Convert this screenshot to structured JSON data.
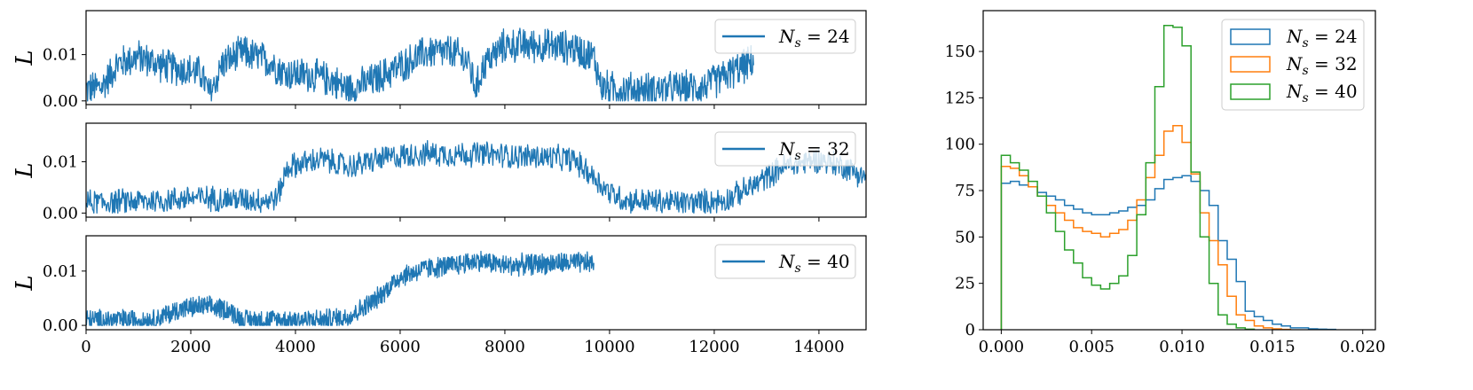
{
  "chart_data": [
    {
      "type": "line",
      "ylabel": "L",
      "xlim": [
        0,
        14900
      ],
      "ylim": [
        -0.0008,
        0.0195
      ],
      "yticks": [
        0.0,
        0.01
      ],
      "ytick_labels": [
        "0.00",
        "0.01"
      ],
      "grid": false,
      "legend_placement": "top-right",
      "series": [
        {
          "name": "N_s = 24",
          "color": "#1f77b4",
          "x_max": 12750,
          "noise_amp": 0.0042,
          "trend": [
            [
              0,
              0.0025
            ],
            [
              300,
              0.003
            ],
            [
              600,
              0.008
            ],
            [
              1000,
              0.0095
            ],
            [
              1500,
              0.0075
            ],
            [
              2000,
              0.0065
            ],
            [
              2200,
              0.006
            ],
            [
              2350,
              0.0015
            ],
            [
              2450,
              0.0035
            ],
            [
              2600,
              0.008
            ],
            [
              3000,
              0.0105
            ],
            [
              3500,
              0.0085
            ],
            [
              3800,
              0.006
            ],
            [
              4300,
              0.0055
            ],
            [
              4700,
              0.0045
            ],
            [
              5000,
              0.0025
            ],
            [
              5500,
              0.0045
            ],
            [
              6000,
              0.0075
            ],
            [
              6500,
              0.0105
            ],
            [
              7000,
              0.0105
            ],
            [
              7300,
              0.0085
            ],
            [
              7450,
              0.0025
            ],
            [
              7600,
              0.008
            ],
            [
              8000,
              0.012
            ],
            [
              8600,
              0.012
            ],
            [
              9300,
              0.0115
            ],
            [
              9700,
              0.0095
            ],
            [
              9850,
              0.003
            ],
            [
              10200,
              0.0025
            ],
            [
              11000,
              0.0025
            ],
            [
              11800,
              0.003
            ],
            [
              12300,
              0.006
            ],
            [
              12750,
              0.0085
            ]
          ]
        }
      ]
    },
    {
      "type": "line",
      "ylabel": "L",
      "xlim": [
        0,
        14900
      ],
      "ylim": [
        -0.0008,
        0.0175
      ],
      "yticks": [
        0.0,
        0.01
      ],
      "ytick_labels": [
        "0.00",
        "0.01"
      ],
      "grid": false,
      "legend_placement": "top-right",
      "series": [
        {
          "name": "N_s = 32",
          "color": "#1f77b4",
          "x_max": 14900,
          "noise_amp": 0.0028,
          "trend": [
            [
              0,
              0.002
            ],
            [
              1500,
              0.0025
            ],
            [
              2000,
              0.003
            ],
            [
              3500,
              0.0025
            ],
            [
              3650,
              0.003
            ],
            [
              3850,
              0.009
            ],
            [
              4500,
              0.0105
            ],
            [
              5000,
              0.009
            ],
            [
              5600,
              0.0105
            ],
            [
              6300,
              0.0115
            ],
            [
              7500,
              0.0115
            ],
            [
              8500,
              0.011
            ],
            [
              9300,
              0.0105
            ],
            [
              9700,
              0.007
            ],
            [
              10000,
              0.004
            ],
            [
              10300,
              0.0025
            ],
            [
              11500,
              0.002
            ],
            [
              12200,
              0.0025
            ],
            [
              12700,
              0.005
            ],
            [
              13300,
              0.009
            ],
            [
              14000,
              0.0105
            ],
            [
              14500,
              0.009
            ],
            [
              14900,
              0.007
            ]
          ]
        }
      ]
    },
    {
      "type": "line",
      "ylabel": "L",
      "xlim": [
        0,
        14900
      ],
      "ylim": [
        -0.0008,
        0.0165
      ],
      "yticks": [
        0.0,
        0.01
      ],
      "ytick_labels": [
        "0.00",
        "0.01"
      ],
      "grid": false,
      "legend_placement": "top-right",
      "series": [
        {
          "name": "N_s = 40",
          "color": "#1f77b4",
          "x_max": 9700,
          "noise_amp": 0.0022,
          "trend": [
            [
              0,
              0.001
            ],
            [
              1300,
              0.001
            ],
            [
              1800,
              0.003
            ],
            [
              2200,
              0.0035
            ],
            [
              2700,
              0.003
            ],
            [
              3000,
              0.001
            ],
            [
              4500,
              0.001
            ],
            [
              5000,
              0.0015
            ],
            [
              5500,
              0.0045
            ],
            [
              6000,
              0.009
            ],
            [
              6500,
              0.0105
            ],
            [
              7000,
              0.011
            ],
            [
              7500,
              0.012
            ],
            [
              8000,
              0.011
            ],
            [
              9000,
              0.0115
            ],
            [
              9700,
              0.0115
            ]
          ]
        }
      ]
    },
    {
      "type": "histogram",
      "xlim": [
        -0.001,
        0.0207
      ],
      "ylim": [
        0,
        172
      ],
      "xticks": [
        0.0,
        0.005,
        0.01,
        0.015,
        0.02
      ],
      "xtick_labels": [
        "0.000",
        "0.005",
        "0.010",
        "0.015",
        "0.020"
      ],
      "yticks": [
        0,
        25,
        50,
        75,
        100,
        125,
        150
      ],
      "ytick_labels": [
        "0",
        "25",
        "50",
        "75",
        "100",
        "125",
        "150"
      ],
      "bin_width": 0.0005,
      "bin_start": 0.0,
      "grid": false,
      "legend_placement": "top-right",
      "series": [
        {
          "name": "N_s = 24",
          "color": "#1f77b4",
          "counts": [
            79,
            80,
            78,
            77,
            74,
            72,
            70,
            67,
            65,
            63,
            62,
            62,
            63,
            64,
            66,
            67,
            70,
            76,
            81,
            82,
            83,
            80,
            75,
            67,
            48,
            38,
            26,
            10,
            7,
            5,
            3,
            2,
            1,
            1,
            0.5,
            0.3,
            0.2
          ]
        },
        {
          "name": "N_s = 32",
          "color": "#ff7f0e",
          "counts": [
            88,
            87,
            83,
            77,
            72,
            67,
            63,
            59,
            55,
            53,
            52,
            50,
            52,
            54,
            59,
            70,
            82,
            94,
            107,
            110,
            101,
            84,
            63,
            48,
            35,
            18,
            8,
            5,
            2,
            1,
            0.5,
            0.2
          ]
        },
        {
          "name": "N_s = 40",
          "color": "#2ca02c",
          "counts": [
            94,
            90,
            86,
            80,
            72,
            63,
            53,
            43,
            36,
            28,
            24,
            22,
            25,
            29,
            40,
            62,
            90,
            131,
            164,
            163,
            153,
            85,
            50,
            25,
            8,
            3,
            1,
            0.3
          ]
        }
      ]
    }
  ]
}
